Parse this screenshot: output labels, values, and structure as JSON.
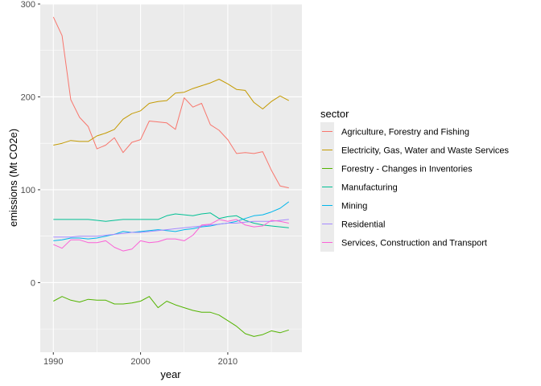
{
  "chart_data": {
    "type": "line",
    "title": "",
    "xlabel": "year",
    "ylabel": "emissions (Mt CO2e)",
    "xlim": [
      1988.5,
      2018.5
    ],
    "ylim": [
      -75,
      300
    ],
    "x_ticks": [
      1990,
      2000,
      2010
    ],
    "y_ticks": [
      0,
      100,
      200,
      300
    ],
    "x_tick_labels": [
      "1990",
      "2000",
      "2010"
    ],
    "y_tick_labels": [
      "0",
      "100",
      "200",
      "300"
    ],
    "grid": true,
    "legend": {
      "title": "sector",
      "position": "right"
    },
    "x": [
      1990,
      1991,
      1992,
      1993,
      1994,
      1995,
      1996,
      1997,
      1998,
      1999,
      2000,
      2001,
      2002,
      2003,
      2004,
      2005,
      2006,
      2007,
      2008,
      2009,
      2010,
      2011,
      2012,
      2013,
      2014,
      2015,
      2016,
      2017
    ],
    "series": [
      {
        "name": "Agriculture, Forestry and Fishing",
        "color": "#F8766D",
        "values": [
          286,
          266,
          197,
          178,
          168,
          144,
          148,
          156,
          140,
          151,
          154,
          174,
          173,
          172,
          165,
          199,
          189,
          193,
          170,
          164,
          154,
          139,
          140,
          139,
          141,
          121,
          104,
          102
        ]
      },
      {
        "name": "Electricity, Gas, Water and Waste Services",
        "color": "#C49A00",
        "values": [
          148,
          150,
          153,
          152,
          152,
          158,
          161,
          165,
          176,
          182,
          185,
          193,
          195,
          196,
          204,
          205,
          209,
          212,
          215,
          219,
          214,
          208,
          207,
          194,
          187,
          195,
          201,
          196
        ]
      },
      {
        "name": "Forestry - Changes in Inventories",
        "color": "#53B400",
        "values": [
          -20,
          -15,
          -19,
          -21,
          -18,
          -19,
          -19,
          -23,
          -23,
          -22,
          -20,
          -15,
          -27,
          -20,
          -24,
          -27,
          -30,
          -32,
          -32,
          -35,
          -41,
          -47,
          -55,
          -58,
          -56,
          -52,
          -54,
          -51
        ]
      },
      {
        "name": "Manufacturing",
        "color": "#00C094",
        "values": [
          68,
          68,
          68,
          68,
          68,
          67,
          66,
          67,
          68,
          68,
          68,
          68,
          68,
          72,
          74,
          73,
          72,
          74,
          75,
          69,
          71,
          72,
          67,
          64,
          62,
          61,
          60,
          59
        ]
      },
      {
        "name": "Mining",
        "color": "#00B6EB",
        "values": [
          45,
          46,
          48,
          48,
          47,
          48,
          50,
          52,
          55,
          54,
          55,
          56,
          57,
          56,
          55,
          57,
          58,
          60,
          61,
          63,
          64,
          66,
          69,
          72,
          73,
          76,
          80,
          87
        ]
      },
      {
        "name": "Residential",
        "color": "#A58AFF",
        "values": [
          49,
          49,
          49,
          50,
          50,
          50,
          51,
          52,
          53,
          54,
          54,
          55,
          56,
          57,
          58,
          59,
          60,
          61,
          62,
          63,
          64,
          64,
          65,
          66,
          66,
          66,
          67,
          68
        ]
      },
      {
        "name": "Services, Construction and Transport",
        "color": "#FB61D7",
        "values": [
          41,
          37,
          46,
          46,
          43,
          43,
          45,
          38,
          34,
          36,
          45,
          43,
          44,
          47,
          47,
          45,
          51,
          62,
          63,
          68,
          66,
          68,
          62,
          60,
          61,
          67,
          66,
          64
        ]
      }
    ]
  }
}
